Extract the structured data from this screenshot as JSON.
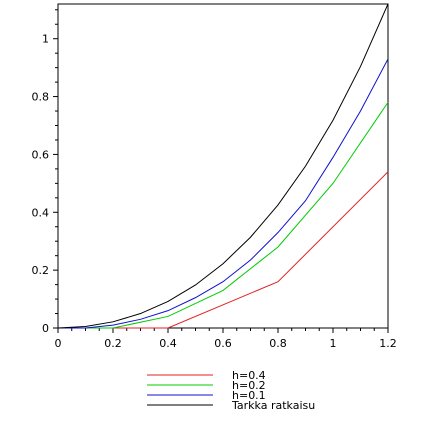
{
  "chart_data": {
    "type": "line",
    "xlim": [
      0,
      1.2
    ],
    "ylim": [
      0,
      1.12
    ],
    "x_ticks": [
      "0",
      "0.2",
      "0.4",
      "0.6",
      "0.8",
      "1",
      "1.2"
    ],
    "y_ticks": [
      "0",
      "0.2",
      "0.4",
      "0.6",
      "0.8",
      "1"
    ],
    "grid": false,
    "legend_placement": "bottom",
    "series": [
      {
        "name": "h=0.4",
        "color": "#e02020",
        "x": [
          0,
          0.4,
          0.8,
          1.2
        ],
        "y": [
          0,
          0,
          0.16,
          0.54
        ]
      },
      {
        "name": "h=0.2",
        "color": "#00cc00",
        "x": [
          0,
          0.2,
          0.4,
          0.6,
          0.8,
          1.0,
          1.2
        ],
        "y": [
          0,
          0,
          0.04,
          0.13,
          0.28,
          0.5,
          0.78
        ]
      },
      {
        "name": "h=0.1",
        "color": "#1010d0",
        "x": [
          0,
          0.1,
          0.2,
          0.3,
          0.4,
          0.5,
          0.6,
          0.7,
          0.8,
          0.9,
          1.0,
          1.1,
          1.2
        ],
        "y": [
          0,
          0,
          0.01,
          0.03,
          0.06,
          0.105,
          0.16,
          0.235,
          0.33,
          0.44,
          0.59,
          0.75,
          0.93
        ]
      },
      {
        "name": "Tarkka ratkaisu",
        "color": "#000000",
        "x": [
          0,
          0.1,
          0.2,
          0.3,
          0.4,
          0.5,
          0.6,
          0.7,
          0.8,
          0.9,
          1.0,
          1.1,
          1.2
        ],
        "y": [
          0,
          0.0052,
          0.0214,
          0.05,
          0.0918,
          0.1487,
          0.2221,
          0.3138,
          0.4255,
          0.5596,
          0.7183,
          0.9042,
          1.1201
        ]
      }
    ]
  }
}
